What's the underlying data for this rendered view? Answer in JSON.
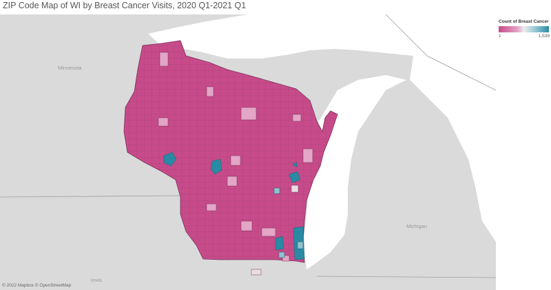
{
  "title": "ZIP Code Map of WI by Breast Cancer Visits, 2020 Q1-2021 Q1",
  "legend": {
    "title": "Count of Breast Cancer ..",
    "min_label": "1",
    "max_label": "1,539",
    "min_color": "#c74b8a",
    "mid_color": "#ececec",
    "max_color": "#2a8aa3"
  },
  "map_labels": {
    "minnesota": "Minnesota",
    "michigan": "Michigan",
    "iowa": "Iowa"
  },
  "attribution": "© 2022 Mapbox © OpenStreetMap",
  "colors": {
    "land": "#dadada",
    "water": "#ffffff",
    "zip_fill": "#c74b8a",
    "zip_border": "#7a2e58"
  }
}
